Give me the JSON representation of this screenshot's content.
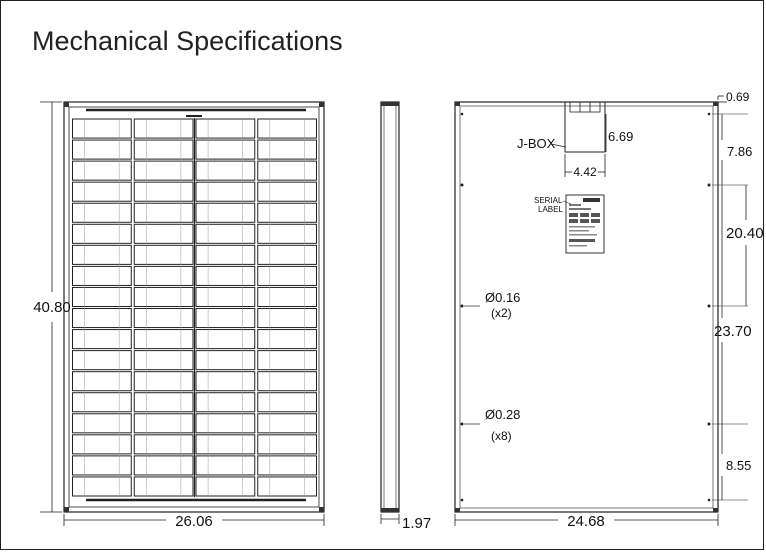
{
  "title": "Mechanical Specifications",
  "front_view": {
    "height": "40.80",
    "width": "26.06",
    "cell_rows": 18,
    "cell_cols": 4
  },
  "side_view": {
    "thickness": "1.97"
  },
  "rear_view": {
    "width": "24.68",
    "jbox": {
      "label": "J-BOX",
      "width": "4.42",
      "height": "6.69"
    },
    "serial_label": {
      "line1": "SERIAL",
      "line2": "LABEL"
    },
    "holes": [
      {
        "diameter": "Ø0.16",
        "count": "(x2)"
      },
      {
        "diameter": "Ø0.28",
        "count": "(x8)"
      }
    ],
    "offsets": {
      "top_edge": "0.69",
      "first": "7.86",
      "span_small": "20.40",
      "span_large": "23.70",
      "bottom": "8.55"
    }
  }
}
